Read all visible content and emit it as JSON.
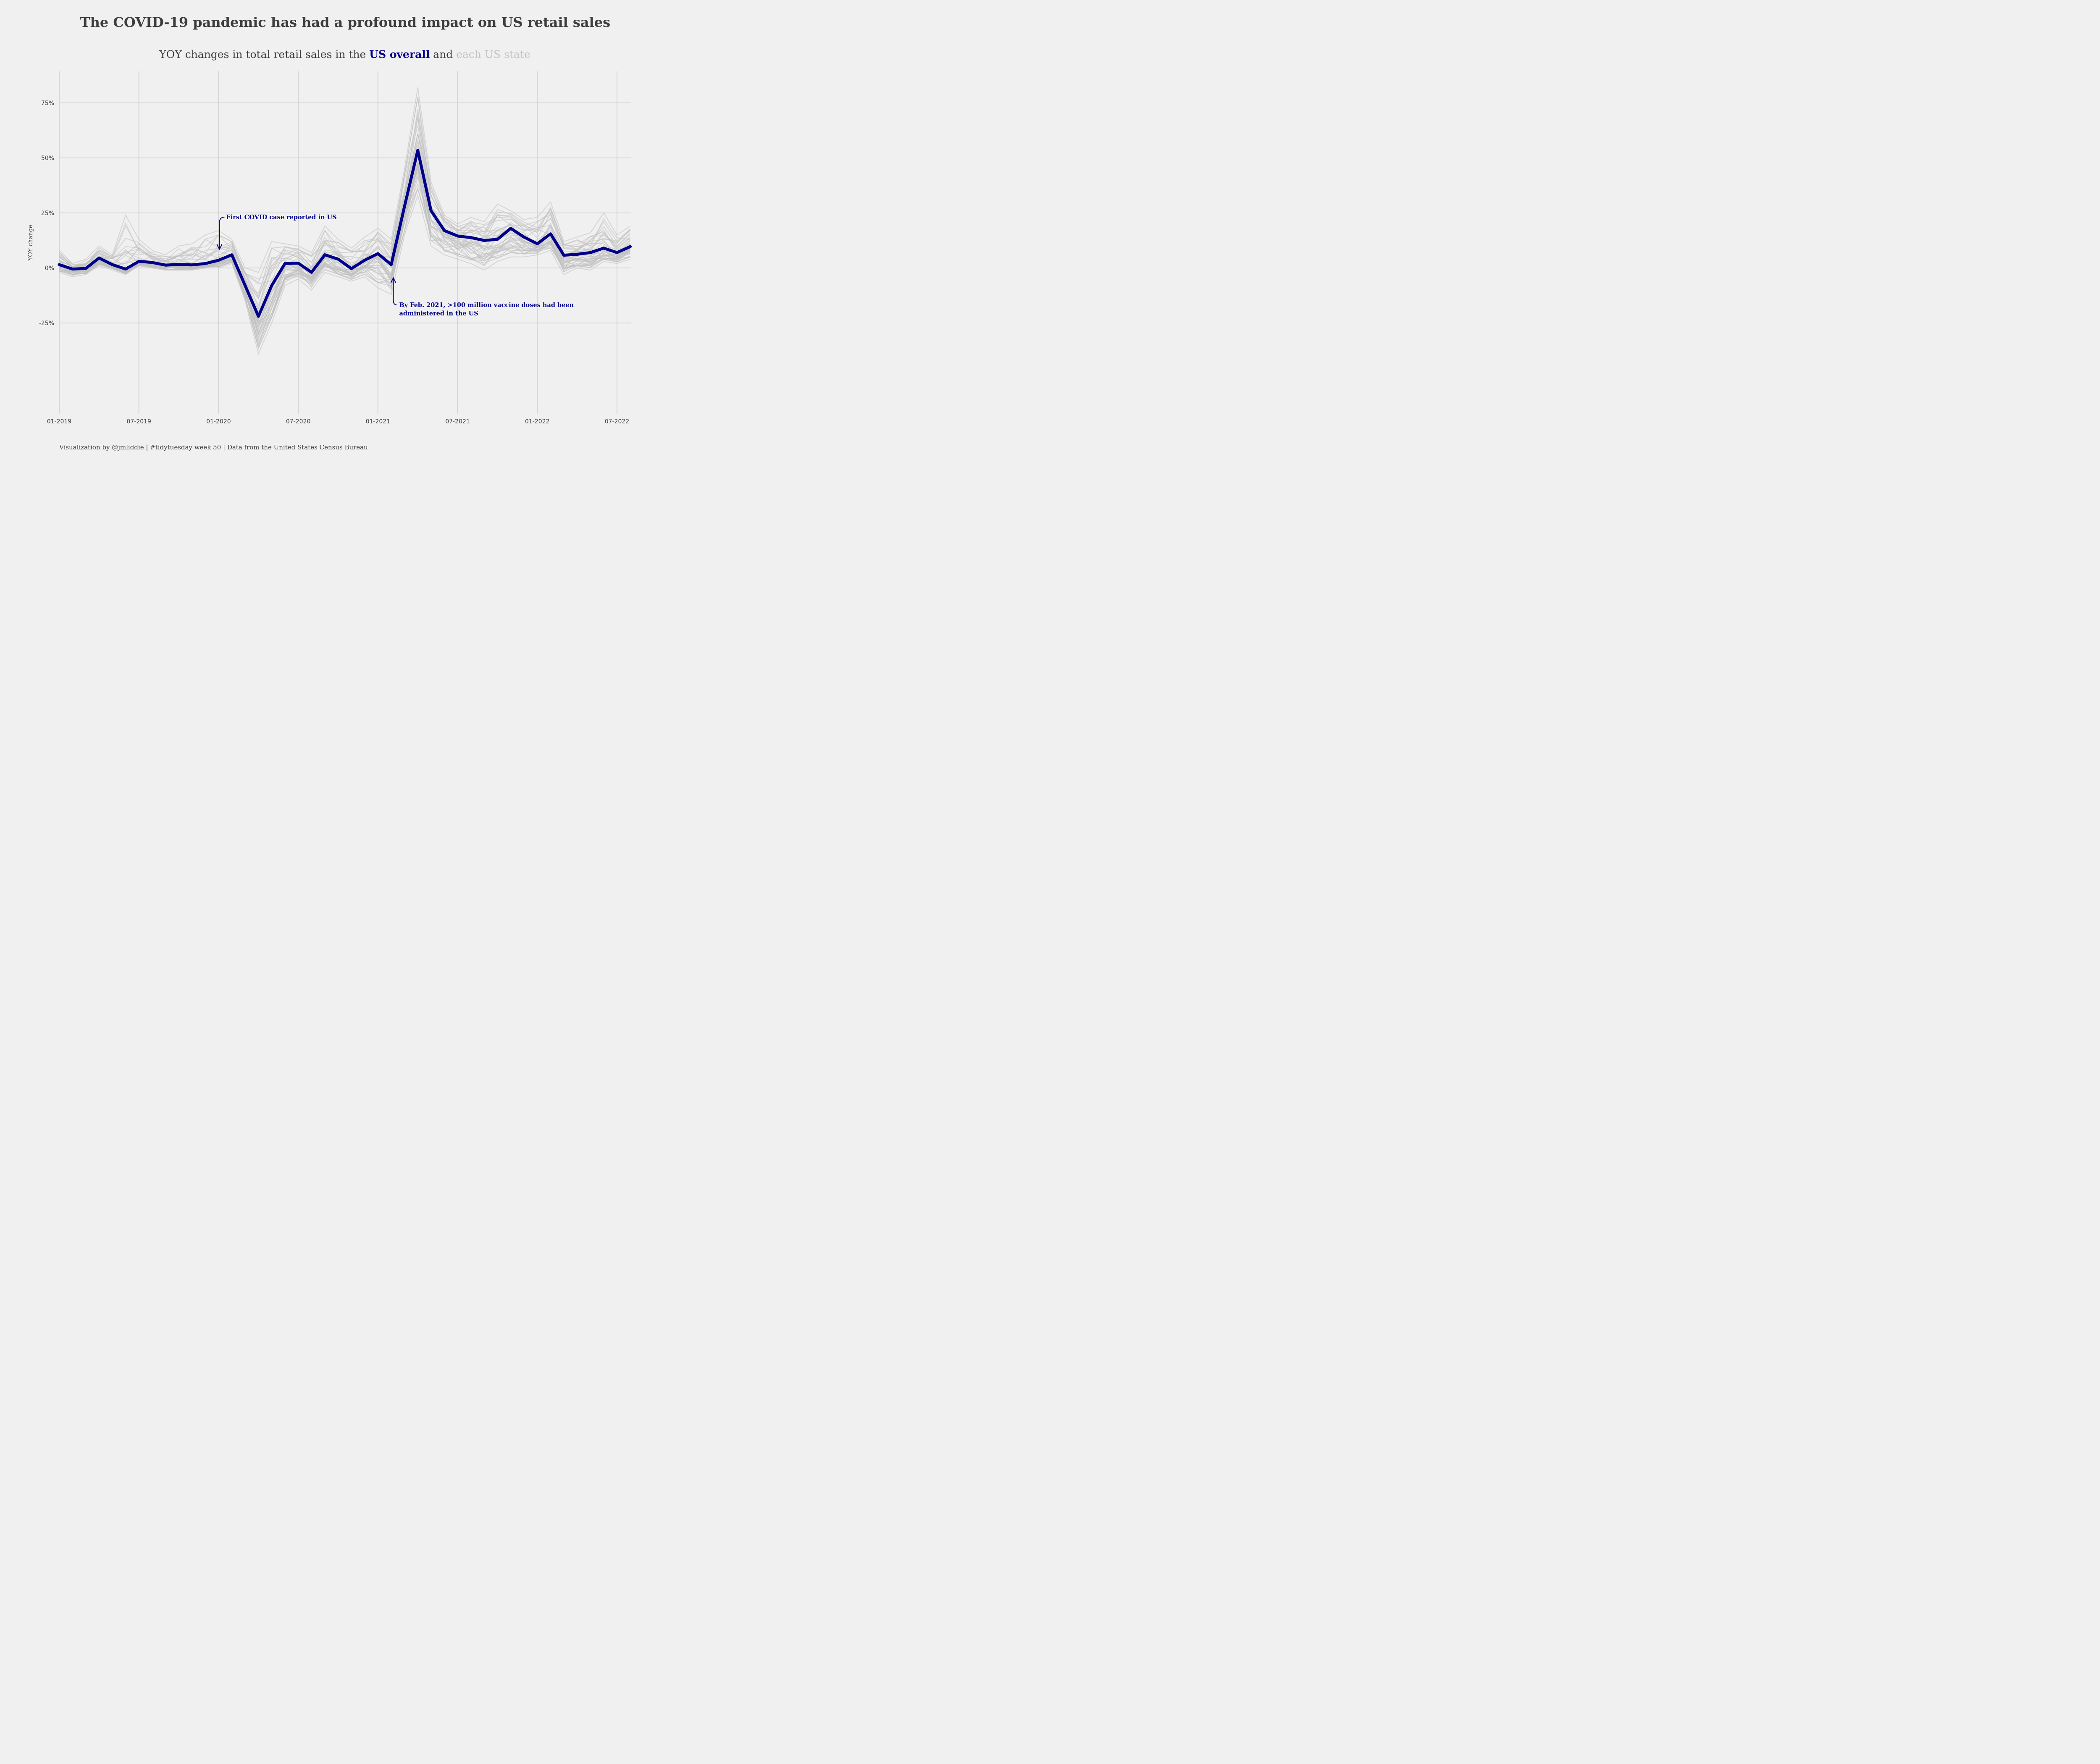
{
  "title": "The COVID-19 pandemic has had a profound impact on US retail sales",
  "subtitle": {
    "part1": "YOY changes in total retail sales in the ",
    "us": "US overall",
    "part2": " and ",
    "state": "each US state"
  },
  "caption": "Visualization by @jmliddie | #tidytuesday week 50 | Data from the United States Census Bureau",
  "colors": {
    "background": "#f0f0f0",
    "grid": "#d3d3d3",
    "us_line": "#00008b",
    "state_lines": "#bfbfbf",
    "text": "#3d3d3d",
    "subtitle_state": "#c2c2c2"
  },
  "chart_data": {
    "type": "line",
    "title": "The COVID-19 pandemic has had a profound impact on US retail sales",
    "subtitle": "YOY changes in total retail sales in the US overall and each US state",
    "xlabel": "",
    "ylabel": "YOY change",
    "x_start": "2019-01",
    "x_end": "2022-08",
    "x_ticks": [
      "01-2019",
      "07-2019",
      "01-2020",
      "07-2020",
      "01-2021",
      "07-2021",
      "01-2022",
      "07-2022"
    ],
    "x_tick_month_index": [
      0,
      6,
      12,
      18,
      24,
      30,
      36,
      42
    ],
    "y_ticks": [
      -25,
      0,
      25,
      50,
      75
    ],
    "y_tick_labels": [
      "-25%",
      "0%",
      "25%",
      "50%",
      "75%"
    ],
    "ylim": [
      -66,
      89
    ],
    "grid": true,
    "legend": "none (encoded in subtitle)",
    "x": [
      "2019-01",
      "2019-02",
      "2019-03",
      "2019-04",
      "2019-05",
      "2019-06",
      "2019-07",
      "2019-08",
      "2019-09",
      "2019-10",
      "2019-11",
      "2019-12",
      "2020-01",
      "2020-02",
      "2020-03",
      "2020-04",
      "2020-05",
      "2020-06",
      "2020-07",
      "2020-08",
      "2020-09",
      "2020-10",
      "2020-11",
      "2020-12",
      "2021-01",
      "2021-02",
      "2021-03",
      "2021-04",
      "2021-05",
      "2021-06",
      "2021-07",
      "2021-08",
      "2021-09",
      "2021-10",
      "2021-11",
      "2021-12",
      "2022-01",
      "2022-02",
      "2022-03",
      "2022-04",
      "2022-05",
      "2022-06",
      "2022-07",
      "2022-08"
    ],
    "series": [
      {
        "name": "US overall",
        "color": "#00008b",
        "values": [
          1.5,
          -0.5,
          -0.2,
          4.5,
          1.5,
          -0.5,
          3.0,
          2.5,
          1.3,
          1.6,
          1.4,
          2.0,
          3.5,
          6.0,
          -8.0,
          -22.0,
          -8.0,
          2.0,
          2.2,
          -2.0,
          6.0,
          4.0,
          -0.3,
          3.5,
          6.5,
          1.5,
          28.0,
          53.5,
          26.0,
          17.0,
          14.5,
          13.8,
          12.5,
          13.0,
          18.0,
          14.0,
          11.0,
          15.5,
          5.8,
          6.2,
          7.0,
          9.0,
          7.0,
          9.7
        ]
      },
      {
        "name": "US states (envelope, approx.)",
        "color": "#bfbfbf",
        "note": "~50 individual state lines; values summarised as min/max envelope",
        "min": [
          -2,
          -4,
          -3,
          1,
          -1,
          -3,
          1,
          0,
          -1,
          -1,
          -1,
          0,
          0,
          2,
          -15,
          -39,
          -25,
          -8,
          -5,
          -10,
          -2,
          -4,
          -6,
          -4,
          -9,
          -12,
          15,
          33,
          10,
          6,
          4,
          2,
          -1,
          3,
          5,
          5,
          6,
          8,
          -3,
          0,
          -1,
          3,
          2,
          4
        ],
        "max": [
          8,
          2,
          4,
          10,
          6,
          24,
          13,
          8,
          6,
          10,
          11,
          15,
          17,
          13,
          0,
          -2,
          12,
          11,
          10,
          7,
          19,
          13,
          9,
          14,
          18,
          13,
          45,
          82,
          39,
          24,
          20,
          23,
          21,
          29,
          26,
          22,
          23,
          30,
          12,
          14,
          16,
          25,
          15,
          19
        ]
      }
    ],
    "annotations": [
      {
        "text": "First COVID case reported in US",
        "x": "2020-01",
        "y": 24
      },
      {
        "text_line1": "By Feb. 2021, >100 million vaccine doses had been",
        "text_line2": "administered in the US",
        "x": "2021-02",
        "y": -18
      }
    ]
  }
}
